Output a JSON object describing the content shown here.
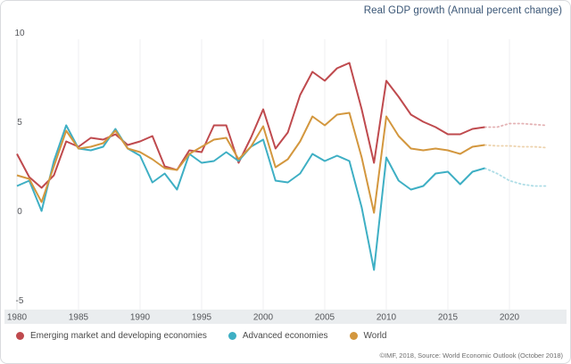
{
  "title": "Real GDP growth (Annual percent change)",
  "source": "©IMF, 2018, Source: World Economic Outlook (October 2018)",
  "colors": {
    "emde": "#bf4a4e",
    "advanced": "#3eafc4",
    "world": "#d3973e",
    "title_text": "#3a5676",
    "axis_text": "#56585c",
    "axis_band": "#eaedef",
    "gridline": "#efeff0"
  },
  "chart_data": {
    "type": "line",
    "title": "Real GDP growth (Annual percent change)",
    "xlim": [
      1980,
      2023
    ],
    "ylim": [
      -5,
      10
    ],
    "y_ticks": [
      10,
      5,
      0,
      -5
    ],
    "x_ticks": [
      1980,
      1985,
      1990,
      1995,
      2000,
      2005,
      2010,
      2015,
      2020
    ],
    "grid": "vertical-only",
    "legend_position": "bottom",
    "forecast_from_year": 2018,
    "x": [
      1980,
      1981,
      1982,
      1983,
      1984,
      1985,
      1986,
      1987,
      1988,
      1989,
      1990,
      1991,
      1992,
      1993,
      1994,
      1995,
      1996,
      1997,
      1998,
      1999,
      2000,
      2001,
      2002,
      2003,
      2004,
      2005,
      2006,
      2007,
      2008,
      2009,
      2010,
      2011,
      2012,
      2013,
      2014,
      2015,
      2016,
      2017,
      2018,
      2019,
      2020,
      2021,
      2022,
      2023
    ],
    "series": [
      {
        "name": "Emerging market and developing economies",
        "color": "#bf4a4e",
        "values": [
          3.2,
          1.9,
          1.3,
          2.0,
          3.9,
          3.6,
          4.1,
          4.0,
          4.3,
          3.7,
          3.9,
          4.2,
          2.5,
          2.3,
          3.4,
          3.3,
          4.8,
          4.8,
          2.7,
          4.1,
          5.7,
          3.5,
          4.4,
          6.5,
          7.8,
          7.3,
          8.0,
          8.3,
          5.7,
          2.7,
          7.3,
          6.4,
          5.4,
          5.0,
          4.7,
          4.3,
          4.3,
          4.6,
          4.7,
          4.7,
          4.9,
          4.9,
          4.85,
          4.8
        ]
      },
      {
        "name": "Advanced economies",
        "color": "#3eafc4",
        "values": [
          1.4,
          1.7,
          0.0,
          2.8,
          4.8,
          3.5,
          3.4,
          3.6,
          4.6,
          3.5,
          3.1,
          1.6,
          2.1,
          1.2,
          3.2,
          2.7,
          2.8,
          3.3,
          2.8,
          3.6,
          4.0,
          1.7,
          1.6,
          2.1,
          3.2,
          2.8,
          3.1,
          2.8,
          0.2,
          -3.3,
          3.0,
          1.7,
          1.2,
          1.4,
          2.1,
          2.2,
          1.5,
          2.2,
          2.4,
          2.1,
          1.7,
          1.5,
          1.4,
          1.4
        ]
      },
      {
        "name": "World",
        "color": "#d3973e",
        "values": [
          2.0,
          1.8,
          0.5,
          2.5,
          4.5,
          3.5,
          3.6,
          3.8,
          4.5,
          3.5,
          3.3,
          2.9,
          2.4,
          2.3,
          3.2,
          3.6,
          4.0,
          4.1,
          2.9,
          3.6,
          4.75,
          2.45,
          2.9,
          3.9,
          5.3,
          4.8,
          5.4,
          5.5,
          3.0,
          -0.1,
          5.3,
          4.2,
          3.5,
          3.4,
          3.5,
          3.4,
          3.2,
          3.6,
          3.7,
          3.65,
          3.65,
          3.6,
          3.6,
          3.55
        ]
      }
    ]
  }
}
